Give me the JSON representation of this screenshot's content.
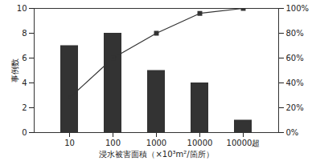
{
  "chart_data": {
    "type": "bar",
    "categories": [
      "10",
      "100",
      "1000",
      "10000",
      "10000超"
    ],
    "x_label": "浸水被害面積（×10³m²/箇所）",
    "y_label": "事例数",
    "series": [
      {
        "type": "bar",
        "color": "#333333",
        "values": [
          7,
          8,
          5,
          4,
          1
        ]
      },
      {
        "type": "line",
        "axis": "y2",
        "color": "#333333",
        "marker": "square",
        "values": [
          28,
          60,
          80,
          96,
          100
        ]
      }
    ],
    "ylim": [
      0,
      10
    ],
    "yticks": [
      0,
      2,
      4,
      6,
      8,
      10
    ],
    "y2lim": [
      0,
      100
    ],
    "y2ticks": [
      {
        "value": 0,
        "label": "0%"
      },
      {
        "value": 20,
        "label": "20%"
      },
      {
        "value": 40,
        "label": "40%"
      },
      {
        "value": 60,
        "label": "60%"
      },
      {
        "value": 80,
        "label": "80%"
      },
      {
        "value": 100,
        "label": "100%"
      }
    ],
    "grid": false
  }
}
